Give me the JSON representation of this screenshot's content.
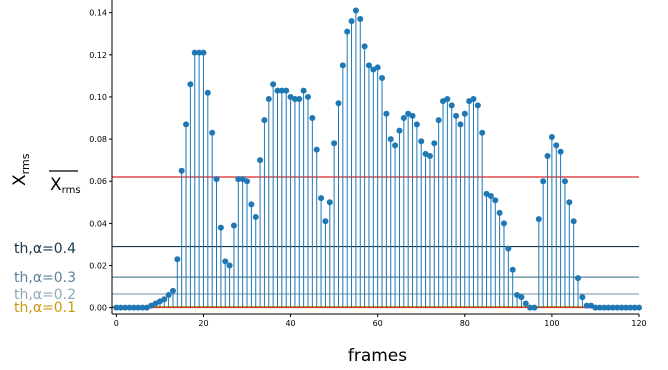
{
  "chart_data": {
    "type": "stem",
    "xlabel": "frames",
    "ylabel": "X",
    "ylabel_sub": "rms",
    "xlim": [
      -1,
      120
    ],
    "ylim": [
      -0.003,
      0.146
    ],
    "x_ticks": [
      0,
      20,
      40,
      60,
      80,
      100,
      120
    ],
    "y_ticks": [
      0.0,
      0.02,
      0.04,
      0.06,
      0.08,
      0.1,
      0.12,
      0.14
    ],
    "y_tick_labels": [
      "0.00",
      "0.02",
      "0.04",
      "0.06",
      "0.08",
      "0.10",
      "0.12",
      "0.14"
    ],
    "stem_color": "#1f77b4",
    "x": [
      0,
      1,
      2,
      3,
      4,
      5,
      6,
      7,
      8,
      9,
      10,
      11,
      12,
      13,
      14,
      15,
      16,
      17,
      18,
      19,
      20,
      21,
      22,
      23,
      24,
      25,
      26,
      27,
      28,
      29,
      30,
      31,
      32,
      33,
      34,
      35,
      36,
      37,
      38,
      39,
      40,
      41,
      42,
      43,
      44,
      45,
      46,
      47,
      48,
      49,
      50,
      51,
      52,
      53,
      54,
      55,
      56,
      57,
      58,
      59,
      60,
      61,
      62,
      63,
      64,
      65,
      66,
      67,
      68,
      69,
      70,
      71,
      72,
      73,
      74,
      75,
      76,
      77,
      78,
      79,
      80,
      81,
      82,
      83,
      84,
      85,
      86,
      87,
      88,
      89,
      90,
      91,
      92,
      93,
      94,
      95,
      96,
      97,
      98,
      99,
      100,
      101,
      102,
      103,
      104,
      105,
      106,
      107,
      108,
      109,
      110,
      111,
      112,
      113,
      114,
      115,
      116,
      117,
      118,
      119,
      120
    ],
    "values": [
      0.0,
      0.0,
      0.0,
      0.0,
      0.0,
      0.0,
      0.0,
      0.0,
      0.001,
      0.002,
      0.003,
      0.004,
      0.006,
      0.008,
      0.023,
      0.065,
      0.087,
      0.106,
      0.121,
      0.121,
      0.121,
      0.102,
      0.083,
      0.061,
      0.038,
      0.022,
      0.02,
      0.039,
      0.061,
      0.061,
      0.06,
      0.049,
      0.043,
      0.07,
      0.089,
      0.099,
      0.106,
      0.103,
      0.103,
      0.103,
      0.1,
      0.099,
      0.099,
      0.103,
      0.1,
      0.09,
      0.075,
      0.052,
      0.041,
      0.05,
      0.078,
      0.097,
      0.115,
      0.131,
      0.136,
      0.141,
      0.137,
      0.124,
      0.115,
      0.113,
      0.114,
      0.109,
      0.092,
      0.08,
      0.077,
      0.084,
      0.09,
      0.092,
      0.091,
      0.087,
      0.079,
      0.073,
      0.072,
      0.078,
      0.089,
      0.098,
      0.099,
      0.096,
      0.091,
      0.087,
      0.092,
      0.098,
      0.099,
      0.096,
      0.083,
      0.054,
      0.053,
      0.051,
      0.045,
      0.04,
      0.028,
      0.018,
      0.006,
      0.005,
      0.002,
      0.0,
      0.0,
      0.042,
      0.06,
      0.072,
      0.081,
      0.077,
      0.074,
      0.06,
      0.05,
      0.041,
      0.014,
      0.005,
      0.001,
      0.001,
      0.0,
      0.0,
      0.0,
      0.0,
      0.0,
      0.0,
      0.0,
      0.0,
      0.0,
      0.0,
      0.0
    ],
    "mean_line": {
      "value": 0.062,
      "color": "#d62728",
      "label_main": "X",
      "label_sub": "rms"
    },
    "thresholds": [
      {
        "label": "th,α=0.4",
        "value": 0.029,
        "color": "#17384a"
      },
      {
        "label": "th,α=0.3",
        "value": 0.0145,
        "color": "#5c8399"
      },
      {
        "label": "th,α=0.2",
        "value": 0.0065,
        "color": "#8fa9b7"
      },
      {
        "label": "th,α=0.1",
        "value": 0.0005,
        "color": "#c79a0f"
      }
    ]
  }
}
